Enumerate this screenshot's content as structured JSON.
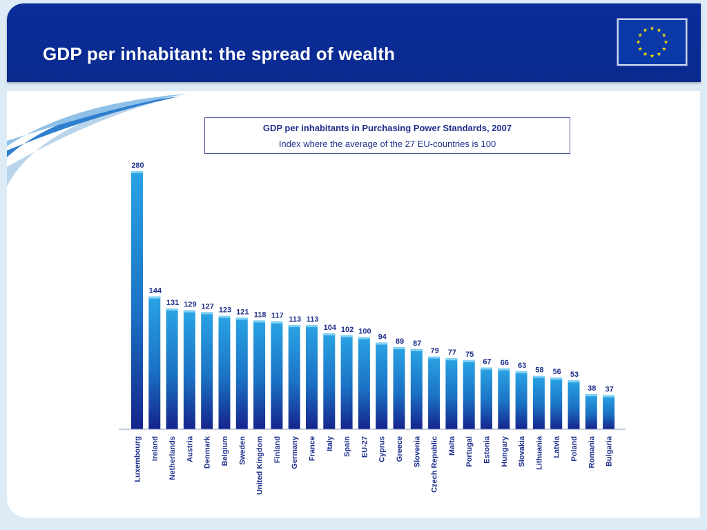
{
  "header": {
    "title": "GDP per inhabitant: the spread of wealth",
    "logo": "eu-flag-icon",
    "colors": {
      "background": "#0b2d9a",
      "text": "#ffffff"
    }
  },
  "chart_data": {
    "type": "bar",
    "title": "GDP per inhabitants in Purchasing Power Standards, 2007",
    "subtitle": "Index where the average of the 27 EU-countries is 100",
    "xlabel": "",
    "ylabel": "",
    "ylim": [
      0,
      280
    ],
    "grid": false,
    "legend": "none",
    "bar_color": "#1a8fd6",
    "categories": [
      "Luxembourg",
      "Ireland",
      "Netherlands",
      "Austria",
      "Denmark",
      "Belgium",
      "Sweden",
      "United Kingdom",
      "Finland",
      "Germany",
      "France",
      "Italy",
      "Spain",
      "EU-27",
      "Cyprus",
      "Greece",
      "Slovenia",
      "Czech Republic",
      "Malta",
      "Portugal",
      "Estonia",
      "Hungary",
      "Slovakia",
      "Lithuania",
      "Latvia",
      "Poland",
      "Romania",
      "Bulgaria"
    ],
    "values": [
      280,
      144,
      131,
      129,
      127,
      123,
      121,
      118,
      117,
      113,
      113,
      104,
      102,
      100,
      94,
      89,
      87,
      79,
      77,
      75,
      67,
      66,
      63,
      58,
      56,
      53,
      38,
      37
    ]
  }
}
